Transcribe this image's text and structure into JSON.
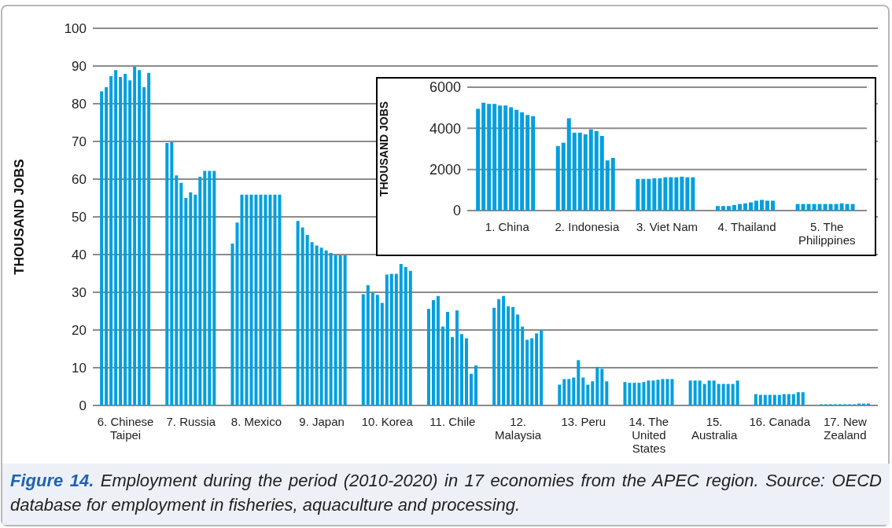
{
  "chart_data": [
    {
      "type": "bar",
      "ylabel": "THOUSAND JOBS",
      "categories": [
        "6. Chinese Taipei",
        "7. Russia",
        "8. Mexico",
        "9. Japan",
        "10. Korea",
        "11. Chile",
        "12. Malaysia",
        "13. Peru",
        "14. The United States",
        "15. Australia",
        "16. Canada",
        "17. New Zealand"
      ],
      "series": [
        {
          "color": "#009fdf",
          "values": [
            83.3,
            69.6,
            42.9,
            48.9,
            29.5,
            25.6,
            25.9,
            5.5,
            6.2,
            6.6,
            3.0,
            0.3
          ]
        },
        {
          "color": "#009fdf",
          "values": [
            84.4,
            69.8,
            48.5,
            47.2,
            31.9,
            27.9,
            28.2,
            7.0,
            6.0,
            6.6,
            2.8,
            0.3
          ]
        },
        {
          "color": "#009fdf",
          "values": [
            87.3,
            61.0,
            55.9,
            45.2,
            29.8,
            29.0,
            29.0,
            7.0,
            6.0,
            6.6,
            2.8,
            0.3
          ]
        },
        {
          "color": "#009fdf",
          "values": [
            88.9,
            59.0,
            55.9,
            43.3,
            29.3,
            20.9,
            26.3,
            7.4,
            6.0,
            5.7,
            2.8,
            0.3
          ]
        },
        {
          "color": "#009fdf",
          "values": [
            87.1,
            55.0,
            55.9,
            42.4,
            27.2,
            24.8,
            26.1,
            12.0,
            6.2,
            6.6,
            2.8,
            0.3
          ]
        },
        {
          "color": "#009fdf",
          "values": [
            87.9,
            56.5,
            55.9,
            41.8,
            34.7,
            18.1,
            24.1,
            7.4,
            6.6,
            6.6,
            2.8,
            0.3
          ]
        },
        {
          "color": "#009fdf",
          "values": [
            86.2,
            55.9,
            55.9,
            41.1,
            34.9,
            25.2,
            20.9,
            5.5,
            6.6,
            5.7,
            3.0,
            0.3
          ]
        },
        {
          "color": "#009fdf",
          "values": [
            89.8,
            60.6,
            55.9,
            40.4,
            34.9,
            18.9,
            17.4,
            6.4,
            6.8,
            5.7,
            3.0,
            0.3
          ]
        },
        {
          "color": "#009fdf",
          "values": [
            88.9,
            62.2,
            55.9,
            39.8,
            37.5,
            17.8,
            17.8,
            10.2,
            7.0,
            5.7,
            3.0,
            0.5
          ]
        },
        {
          "color": "#009fdf",
          "values": [
            84.4,
            62.2,
            55.9,
            39.8,
            36.7,
            8.4,
            19.1,
            9.7,
            7.0,
            5.7,
            3.5,
            0.5
          ]
        },
        {
          "color": "#009fdf",
          "values": [
            88.2,
            62.2,
            55.9,
            39.8,
            35.7,
            10.6,
            19.9,
            6.4,
            7.0,
            6.6,
            3.5,
            0.5
          ]
        }
      ],
      "ylim": [
        0,
        100
      ],
      "yticks": [
        0,
        10,
        20,
        30,
        40,
        50,
        60,
        70,
        80,
        90,
        100
      ],
      "grid": "y",
      "annotations": [
        "Figure 14.",
        "Employment during the period (2010-2020) in 17 economies from the APEC region. Source: OECD database for employment in fisheries, aquaculture and processing."
      ]
    },
    {
      "type": "bar",
      "ylabel": "THOUSAND JOBS",
      "categories": [
        "1. China",
        "2. Indonesia",
        "3. Viet Nam",
        "4. Thailand",
        "5. The Philippines"
      ],
      "series": [
        {
          "color": "#009fdf",
          "values": [
            4950,
            3140,
            1540,
            220,
            320
          ]
        },
        {
          "color": "#009fdf",
          "values": [
            5250,
            3300,
            1540,
            220,
            320
          ]
        },
        {
          "color": "#009fdf",
          "values": [
            5190,
            4490,
            1540,
            220,
            320
          ]
        },
        {
          "color": "#009fdf",
          "values": [
            5190,
            3790,
            1570,
            270,
            320
          ]
        },
        {
          "color": "#009fdf",
          "values": [
            5110,
            3790,
            1570,
            320,
            320
          ]
        },
        {
          "color": "#009fdf",
          "values": [
            5110,
            3710,
            1620,
            350,
            320
          ]
        },
        {
          "color": "#009fdf",
          "values": [
            5030,
            3950,
            1620,
            400,
            320
          ]
        },
        {
          "color": "#009fdf",
          "values": [
            4900,
            3870,
            1620,
            480,
            320
          ]
        },
        {
          "color": "#009fdf",
          "values": [
            4780,
            3630,
            1650,
            520,
            350
          ]
        },
        {
          "color": "#009fdf",
          "values": [
            4650,
            2440,
            1620,
            480,
            320
          ]
        },
        {
          "color": "#009fdf",
          "values": [
            4590,
            2560,
            1620,
            480,
            320
          ]
        }
      ],
      "ylim": [
        0,
        6000
      ],
      "yticks": [
        0,
        2000,
        4000,
        6000
      ],
      "grid": "y"
    }
  ]
}
